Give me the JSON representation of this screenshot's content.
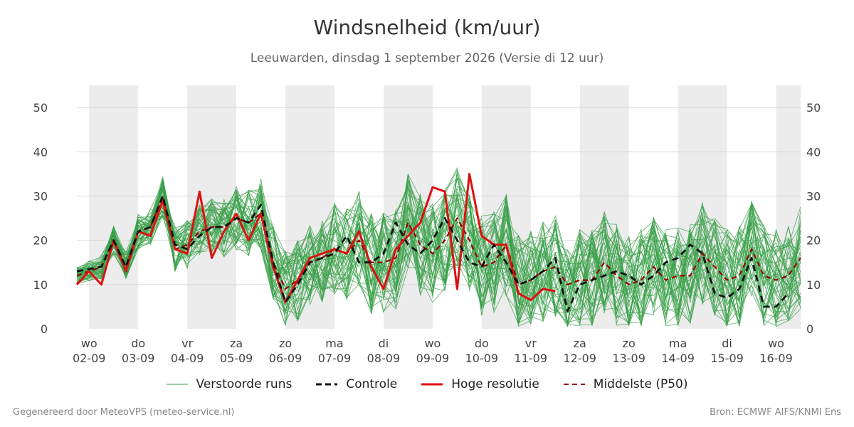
{
  "header": {
    "title": "Windsnelheid (km/uur)",
    "subtitle": "Leeuwarden, dinsdag  1 september 2026 (Versie di 12 uur)"
  },
  "footer": {
    "left": "Gegenereerd door MeteoVPS (meteo-service.nl)",
    "right": "Bron: ECMWF AIFS/KNMI Ens"
  },
  "legend": [
    {
      "label": "Verstoorde runs",
      "color": "#3aa04a",
      "style": "thin"
    },
    {
      "label": "Controle",
      "color": "#111111",
      "style": "dashed"
    },
    {
      "label": "Hoge resolutie",
      "color": "#dd1111",
      "style": "solid"
    },
    {
      "label": "Middelste (P50)",
      "color": "#990000",
      "style": "dashed"
    }
  ],
  "chart_data": {
    "type": "line",
    "title": "Windsnelheid (km/uur)",
    "ylim": [
      0,
      55
    ],
    "yticks": [
      0,
      10,
      20,
      30,
      40,
      50
    ],
    "x_unit": "days since 02-09 00h (6-hourly steps)",
    "xlim": [
      -0.25,
      14.5
    ],
    "grid": "horizontal",
    "shaded_weekdays": "alternate days shaded grey",
    "day_ticks": [
      {
        "day": "wo",
        "date": "02-09"
      },
      {
        "day": "do",
        "date": "03-09"
      },
      {
        "day": "vr",
        "date": "04-09"
      },
      {
        "day": "za",
        "date": "05-09"
      },
      {
        "day": "zo",
        "date": "06-09"
      },
      {
        "day": "ma",
        "date": "07-09"
      },
      {
        "day": "di",
        "date": "08-09"
      },
      {
        "day": "wo",
        "date": "09-09"
      },
      {
        "day": "do",
        "date": "10-09"
      },
      {
        "day": "vr",
        "date": "11-09"
      },
      {
        "day": "za",
        "date": "12-09"
      },
      {
        "day": "zo",
        "date": "13-09"
      },
      {
        "day": "ma",
        "date": "14-09"
      },
      {
        "day": "di",
        "date": "15-09"
      },
      {
        "day": "wo",
        "date": "16-09"
      }
    ],
    "x_start": -0.25,
    "x_step": 0.25,
    "ensemble_count": 50,
    "series": [
      {
        "name": "Controle",
        "values": [
          13,
          13.5,
          14,
          20,
          14,
          22,
          23,
          30,
          19,
          18,
          21,
          23,
          23,
          25,
          24,
          28,
          15,
          6,
          10,
          15,
          16,
          17,
          21,
          15,
          15,
          17,
          24,
          19,
          17,
          20,
          25,
          20,
          15,
          14,
          19,
          15,
          10,
          11,
          13,
          16,
          4,
          10,
          11,
          12,
          13,
          12,
          10,
          12,
          15,
          16,
          19,
          17,
          8,
          7,
          9,
          16,
          5,
          5,
          8
        ]
      },
      {
        "name": "Hoge resolutie",
        "values": [
          10,
          13,
          10,
          20,
          13,
          22,
          21,
          29,
          18,
          17,
          31,
          16,
          22,
          26,
          20,
          26,
          14,
          6,
          11,
          16,
          17,
          18,
          17,
          22,
          14,
          9,
          18,
          21,
          24,
          32,
          31,
          9,
          35,
          21,
          19,
          19,
          8,
          6.5,
          9,
          8.5
        ]
      },
      {
        "name": "Middelste (P50)",
        "values": [
          12,
          13,
          14,
          20,
          14,
          22,
          23,
          30,
          18,
          19,
          22,
          23,
          23,
          25,
          24,
          26,
          15,
          9,
          11,
          15,
          16,
          18,
          17,
          20,
          15,
          15,
          16,
          24,
          19,
          17,
          20,
          25,
          20,
          14,
          15,
          19,
          10,
          11,
          13,
          14,
          10,
          11,
          11,
          15,
          12,
          10,
          11,
          14,
          11,
          12,
          12,
          17,
          14,
          11,
          12,
          18,
          12,
          11,
          12,
          16
        ]
      }
    ]
  }
}
